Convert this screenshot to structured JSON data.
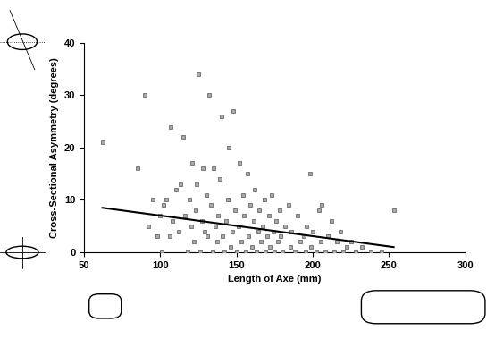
{
  "chart_data": {
    "type": "scatter",
    "x_label": "Length of Axe (mm)",
    "y_label": "Cross-Sectional Asymmetry (degrees)",
    "xlim": [
      50,
      300
    ],
    "xticks": [
      50,
      100,
      150,
      200,
      250,
      300
    ],
    "ylim": [
      0,
      40
    ],
    "yticks": [
      0,
      10,
      20,
      30,
      40
    ],
    "grid": false,
    "series": [
      {
        "type": "scatter",
        "marker": "square",
        "color": "#a8a8a8",
        "x": [
          62,
          85,
          90,
          92,
          95,
          98,
          100,
          101,
          102,
          104,
          106,
          107,
          108,
          110,
          112,
          113,
          115,
          116,
          118,
          119,
          120,
          121,
          122,
          123,
          124,
          125,
          126,
          127,
          128,
          129,
          130,
          131,
          132,
          133,
          134,
          135,
          136,
          137,
          138,
          139,
          140,
          141,
          142,
          143,
          144,
          145,
          146,
          147,
          148,
          149,
          150,
          151,
          152,
          153,
          154,
          155,
          156,
          157,
          158,
          159,
          160,
          161,
          162,
          163,
          164,
          165,
          166,
          167,
          168,
          169,
          170,
          171,
          172,
          173,
          174,
          175,
          176,
          177,
          178,
          179,
          180,
          182,
          184,
          185,
          186,
          188,
          190,
          192,
          194,
          195,
          196,
          198,
          199,
          200,
          202,
          204,
          205,
          206,
          208,
          210,
          212,
          214,
          216,
          218,
          220,
          222,
          225,
          228,
          232,
          238,
          245,
          253
        ],
        "values": [
          21,
          16,
          30,
          5,
          10,
          3,
          7,
          0,
          9,
          10,
          3,
          24,
          6,
          12,
          4,
          13,
          22,
          7,
          0,
          10,
          5,
          17,
          2,
          8,
          13,
          34,
          0,
          6,
          16,
          4,
          11,
          3,
          30,
          9,
          0,
          16,
          5,
          2,
          7,
          14,
          26,
          3,
          0,
          6,
          10,
          20,
          1,
          4,
          27,
          8,
          0,
          5,
          17,
          2,
          11,
          7,
          0,
          15,
          3,
          9,
          1,
          6,
          12,
          0,
          4,
          8,
          2,
          5,
          10,
          0,
          3,
          7,
          1,
          11,
          4,
          0,
          6,
          2,
          8,
          3,
          0,
          5,
          9,
          1,
          4,
          0,
          7,
          2,
          3,
          0,
          5,
          15,
          1,
          4,
          0,
          8,
          2,
          9,
          0,
          3,
          6,
          0,
          2,
          4,
          0,
          1,
          2,
          0,
          1,
          0,
          0,
          8
        ]
      },
      {
        "type": "line",
        "line_style": "solid",
        "color": "#000000",
        "x": [
          62,
          253
        ],
        "values": [
          8.5,
          1.0
        ]
      }
    ]
  }
}
